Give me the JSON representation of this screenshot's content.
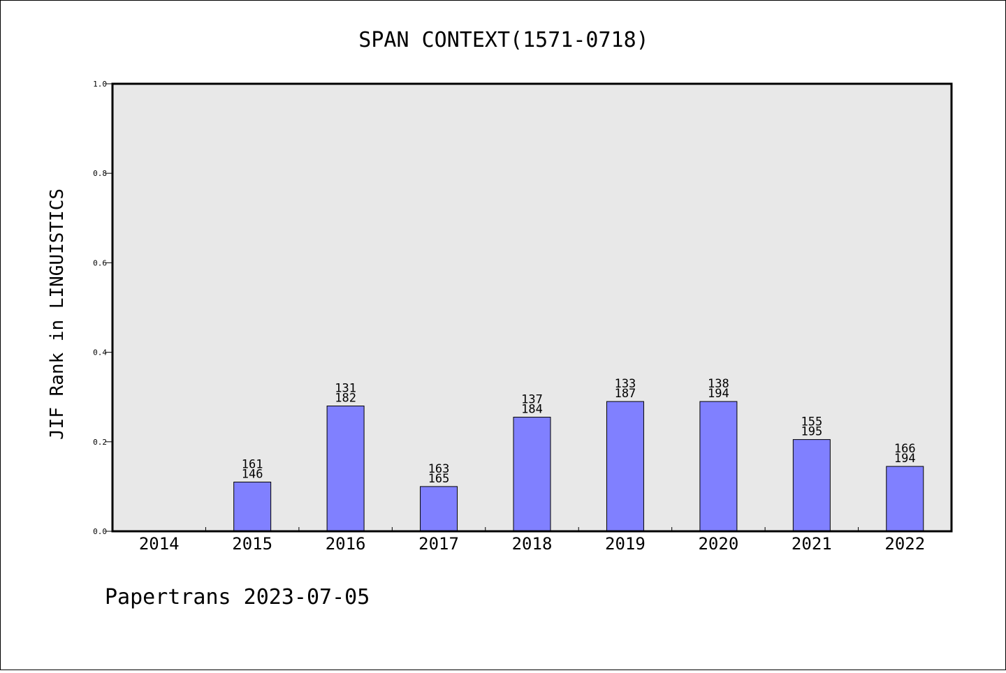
{
  "chart_data": {
    "type": "bar",
    "title": "SPAN CONTEXT(1571-0718)",
    "ylabel": "JIF Rank in LINGUISTICS",
    "xlabel": "",
    "ylim": [
      0,
      1.0
    ],
    "yticks": [
      "0.0",
      "0.2",
      "0.4",
      "0.6",
      "0.8",
      "1.0"
    ],
    "categories": [
      "2014",
      "2015",
      "2016",
      "2017",
      "2018",
      "2019",
      "2020",
      "2021",
      "2022"
    ],
    "values": [
      null,
      0.11,
      0.28,
      0.1,
      0.255,
      0.29,
      0.29,
      0.205,
      0.145
    ],
    "data_labels": [
      null,
      [
        "161",
        "146"
      ],
      [
        "131",
        "182"
      ],
      [
        "163",
        "165"
      ],
      [
        "137",
        "184"
      ],
      [
        "133",
        "187"
      ],
      [
        "138",
        "194"
      ],
      [
        "155",
        "195"
      ],
      [
        "166",
        "194"
      ]
    ],
    "grid": false,
    "bar_color": "#8080ff",
    "plot_background": "#e8e8e8"
  },
  "footer": {
    "text": "Papertrans 2023-07-05"
  }
}
